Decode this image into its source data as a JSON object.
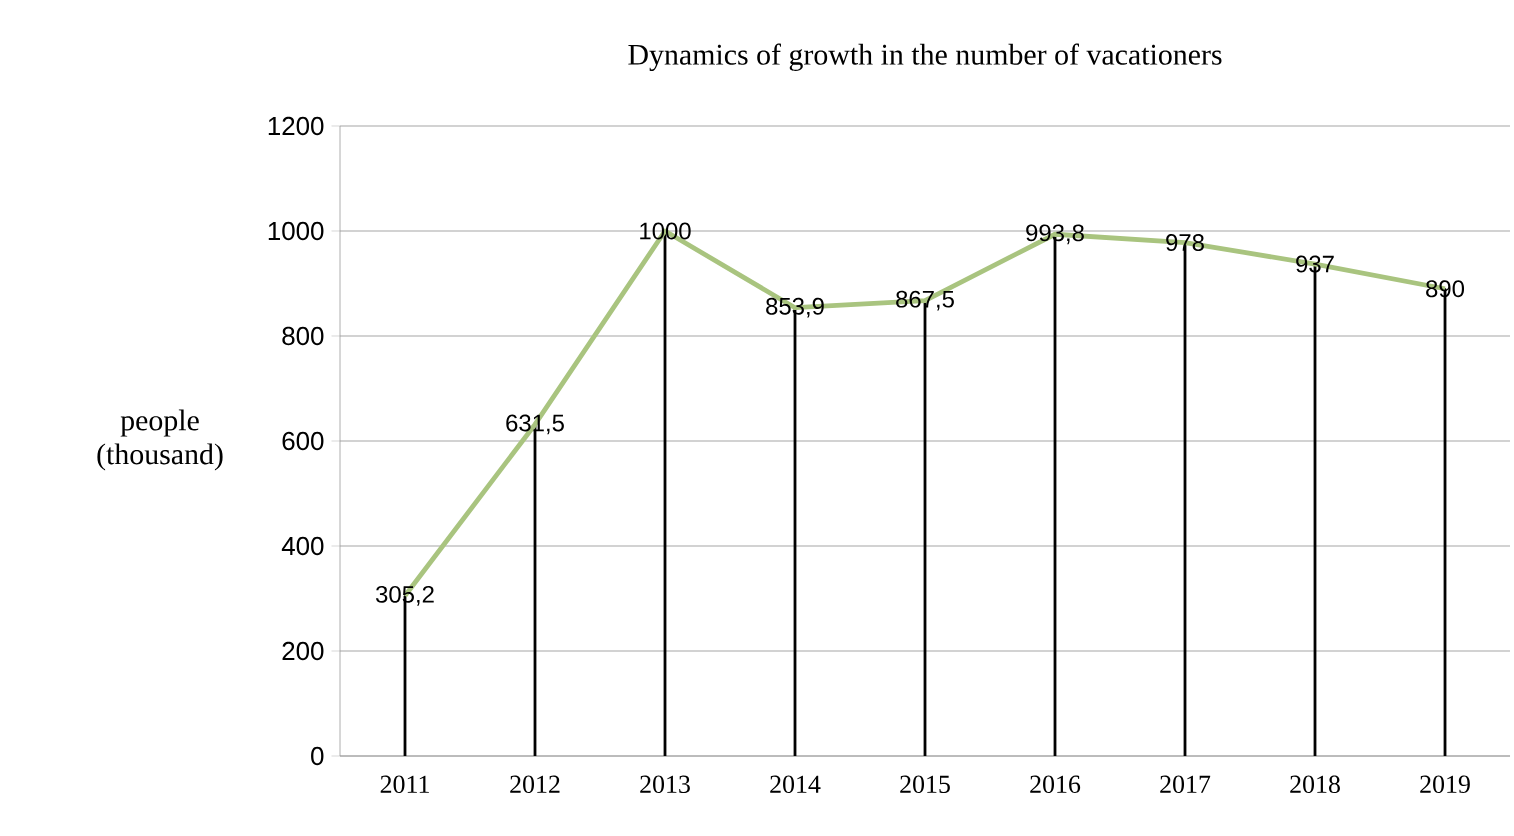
{
  "chart_data": {
    "type": "line",
    "title": "Dynamics of growth in the number of vacationers",
    "ylabel": "people (thousand)",
    "categories": [
      "2011",
      "2012",
      "2013",
      "2014",
      "2015",
      "2016",
      "2017",
      "2018",
      "2019"
    ],
    "series": [
      {
        "type": "bar",
        "color": "#000000",
        "values": [
          305.2,
          631.5,
          1000,
          853.9,
          867.5,
          993.8,
          978,
          937,
          890
        ]
      },
      {
        "color": "#a9c47f",
        "values": [
          305.2,
          631.5,
          1000,
          853.9,
          867.5,
          993.8,
          978,
          937,
          890
        ],
        "value_labels": [
          "305,2",
          "631,5",
          "1000",
          "853,9",
          "867,5",
          "993,8",
          "978",
          "937",
          "890"
        ]
      }
    ],
    "ylim": [
      0,
      1200
    ],
    "yticks": [
      0,
      200,
      400,
      600,
      800,
      1000,
      1200
    ],
    "grid": "y"
  }
}
